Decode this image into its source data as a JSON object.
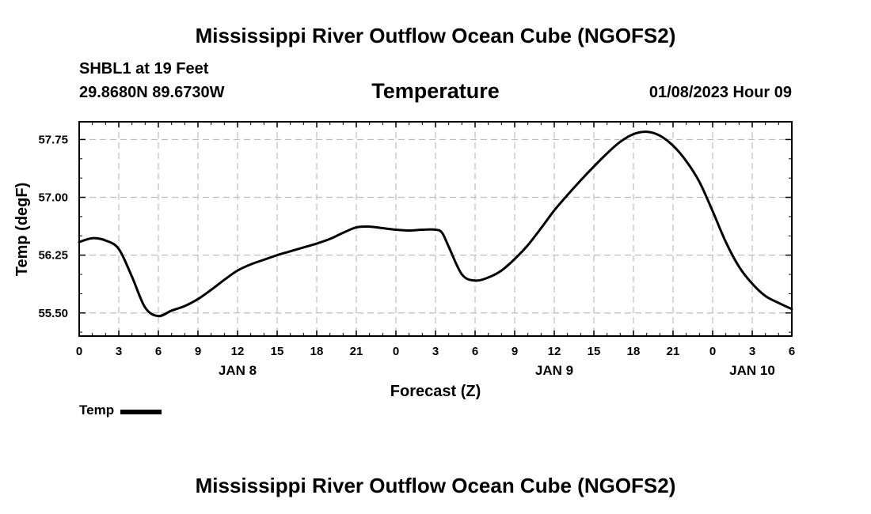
{
  "header": {
    "title": "Mississippi River Outflow Ocean Cube (NGOFS2)",
    "station": "SHBL1 at 19 Feet",
    "coords": "29.8680N  89.6730W",
    "variable": "Temperature",
    "datetime": "01/08/2023 Hour 09"
  },
  "footer": {
    "title": "Mississippi River Outflow Ocean Cube (NGOFS2)"
  },
  "legend": {
    "label": "Temp",
    "color": "#000000"
  },
  "chart_data": {
    "type": "line",
    "title": "Temperature",
    "xlabel": "Forecast (Z)",
    "ylabel": "Temp (degF)",
    "xlim": [
      0,
      54
    ],
    "ylim": [
      55.2,
      57.98
    ],
    "yticks": [
      55.5,
      56.25,
      57.0,
      57.75
    ],
    "ytick_labels": [
      "55.50",
      "56.25",
      "57.00",
      "57.75"
    ],
    "xticks": [
      0,
      3,
      6,
      9,
      12,
      15,
      18,
      21,
      24,
      27,
      30,
      33,
      36,
      39,
      42,
      45,
      48,
      51,
      54
    ],
    "xtick_labels": [
      "0",
      "3",
      "6",
      "9",
      "12",
      "15",
      "18",
      "21",
      "0",
      "3",
      "6",
      "9",
      "12",
      "15",
      "18",
      "21",
      "0",
      "3",
      "6"
    ],
    "day_labels": [
      {
        "x": 12,
        "label": "JAN 8"
      },
      {
        "x": 36,
        "label": "JAN 9"
      },
      {
        "x": 51,
        "label": "JAN 10"
      }
    ],
    "grid": true,
    "series": [
      {
        "name": "Temp",
        "color": "#000000",
        "x": [
          0,
          1,
          2,
          3,
          4,
          5,
          6,
          7,
          8,
          9,
          10,
          11,
          12,
          13,
          14,
          15,
          16,
          17,
          18,
          19,
          20,
          21,
          22,
          23,
          24,
          25,
          26,
          27,
          27.5,
          28,
          29,
          30,
          31,
          32,
          33,
          34,
          35,
          36,
          37,
          38,
          39,
          40,
          41,
          42,
          43,
          44,
          45,
          46,
          47,
          48,
          49,
          50,
          51,
          52,
          53,
          54
        ],
        "y": [
          56.42,
          56.47,
          56.44,
          56.33,
          55.97,
          55.57,
          55.46,
          55.53,
          55.59,
          55.68,
          55.8,
          55.93,
          56.05,
          56.13,
          56.19,
          56.25,
          56.3,
          56.35,
          56.4,
          56.46,
          56.54,
          56.61,
          56.62,
          56.6,
          56.58,
          56.57,
          56.58,
          56.58,
          56.54,
          56.36,
          56.0,
          55.92,
          55.96,
          56.05,
          56.2,
          56.38,
          56.6,
          56.83,
          57.03,
          57.22,
          57.4,
          57.57,
          57.72,
          57.82,
          57.85,
          57.8,
          57.67,
          57.47,
          57.2,
          56.82,
          56.42,
          56.1,
          55.88,
          55.72,
          55.63,
          55.55
        ]
      }
    ]
  }
}
